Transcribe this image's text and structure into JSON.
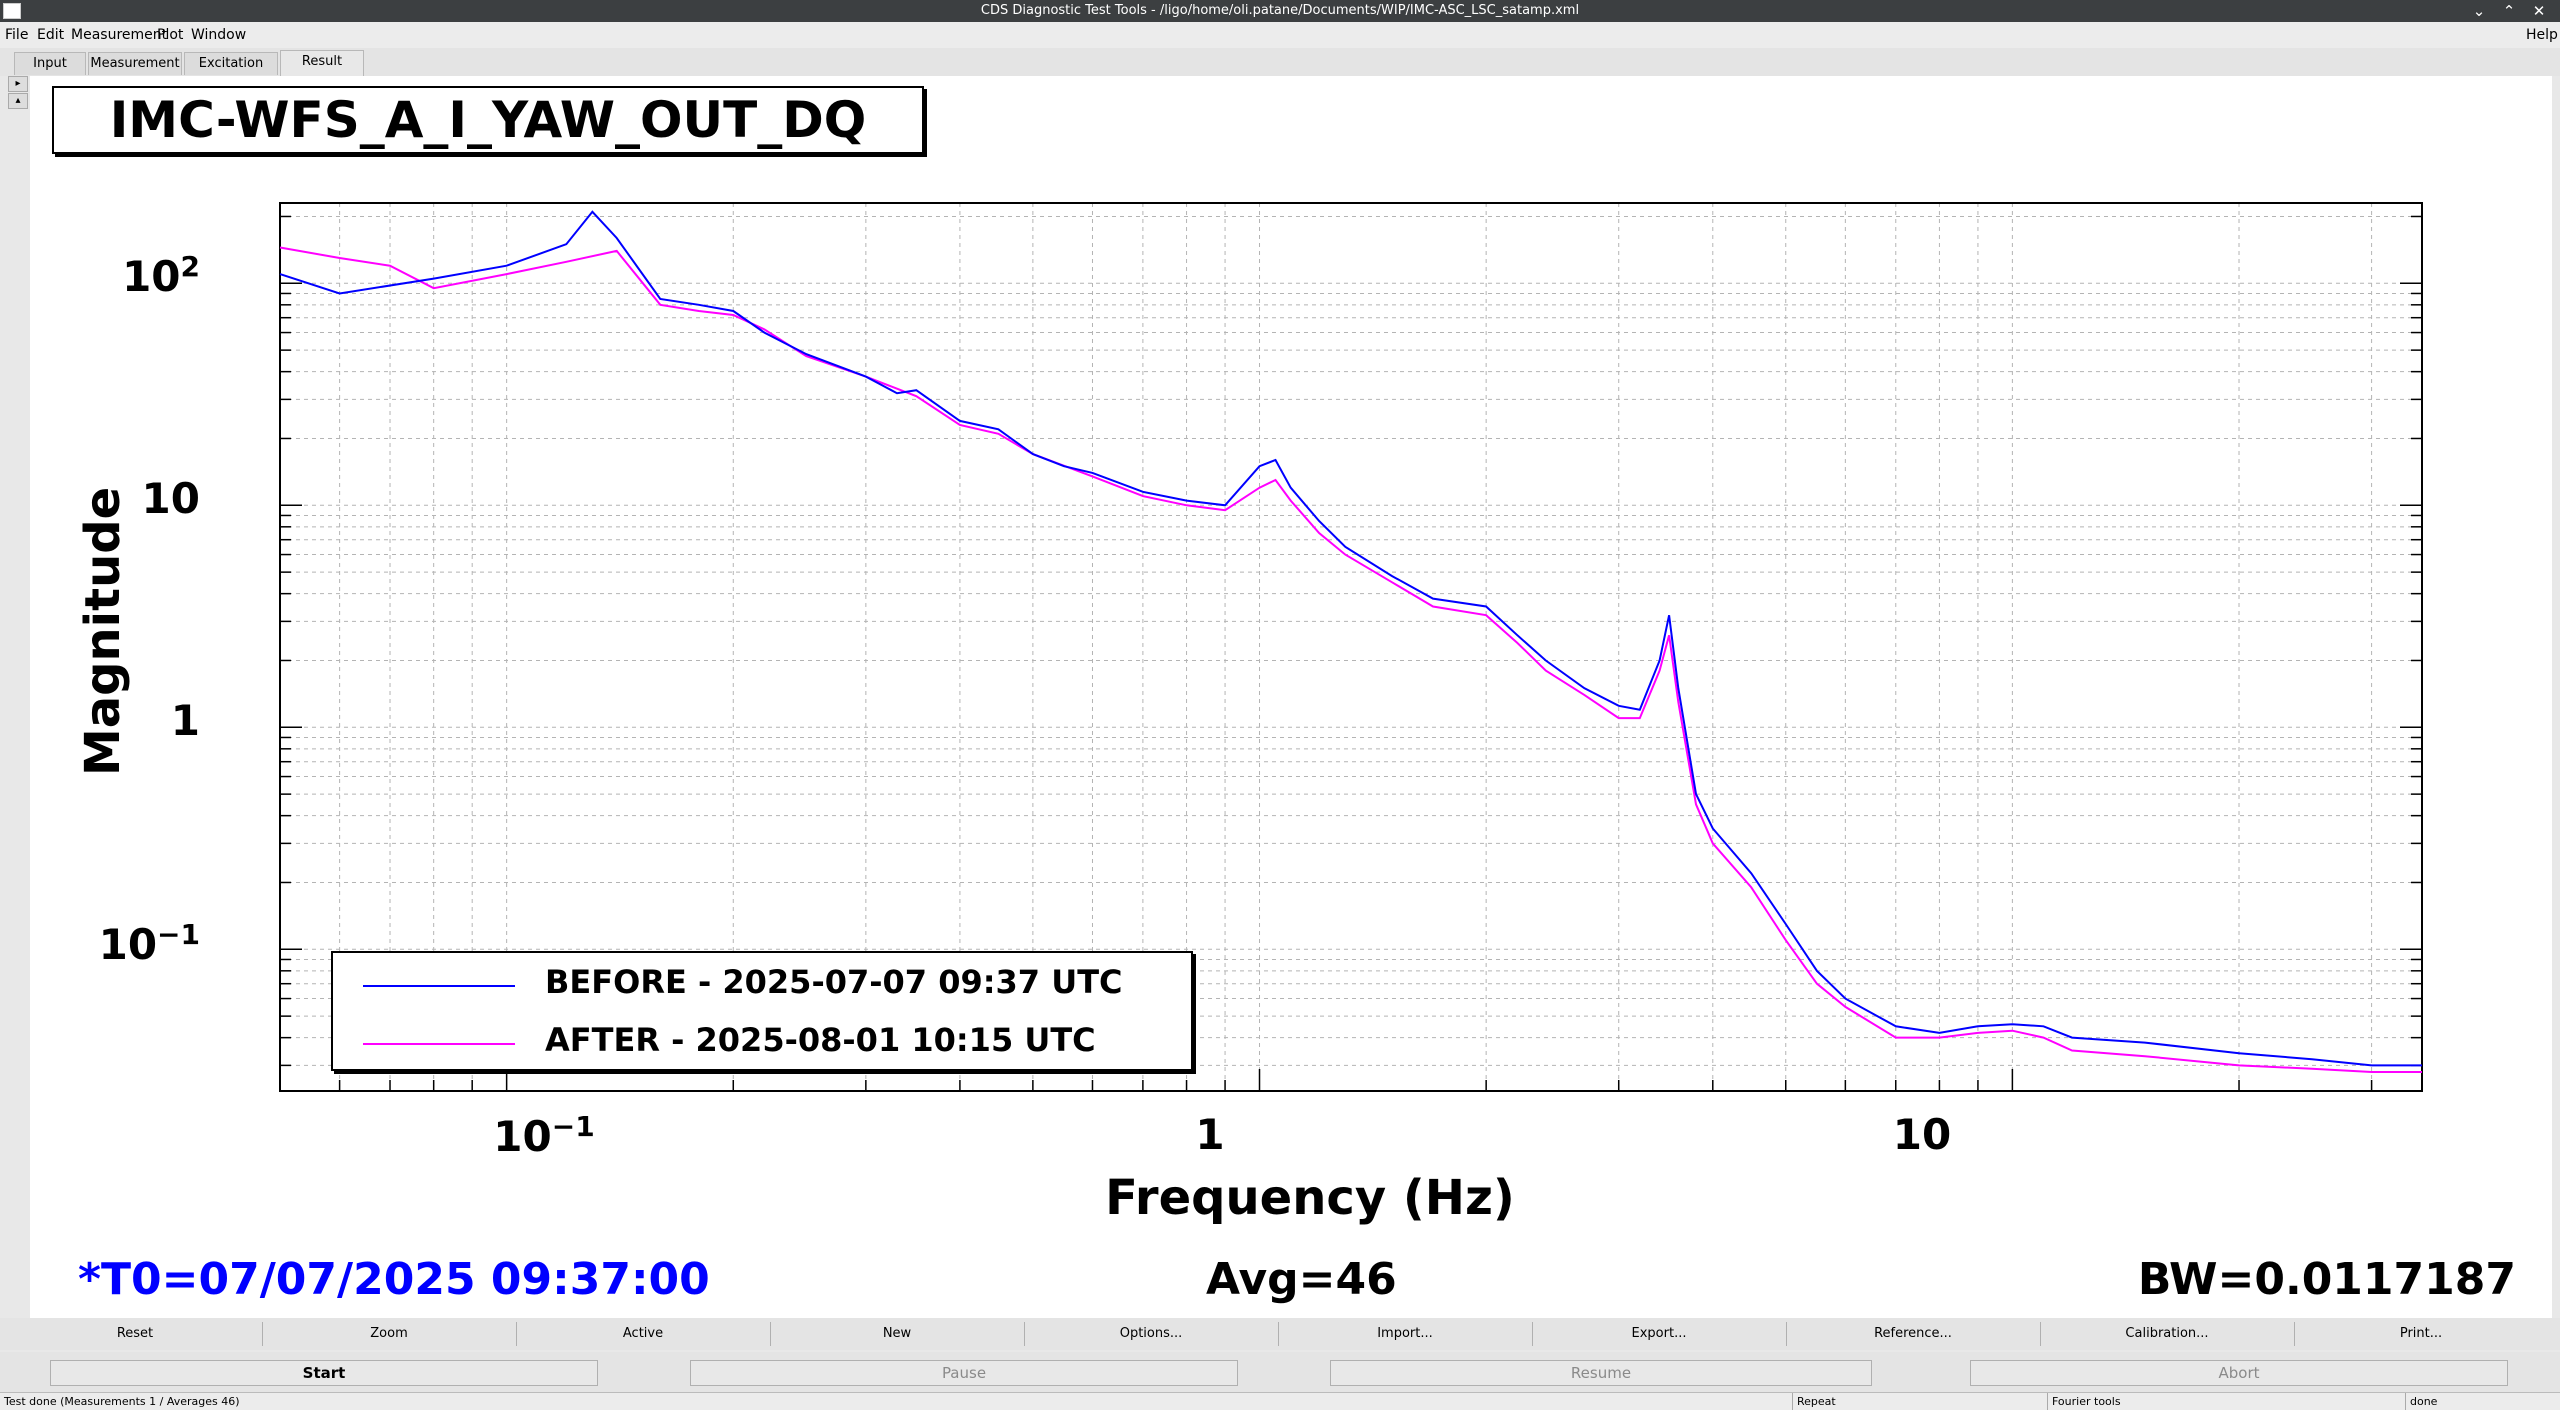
{
  "window": {
    "title": "CDS Diagnostic Test Tools - /ligo/home/oli.patane/Documents/WIP/IMC-ASC_LSC_satamp.xml",
    "minimize_glyph": "⌄",
    "maximize_glyph": "⌃",
    "close_glyph": "✕"
  },
  "menu": {
    "file": "File",
    "edit": "Edit",
    "measurement": "Measurement",
    "plot": "Plot",
    "window": "Window",
    "help": "Help"
  },
  "tabs": {
    "input": "Input",
    "measurement": "Measurement",
    "excitation": "Excitation",
    "result": "Result"
  },
  "side_controls": {
    "expand": "▸",
    "collapse": "▴"
  },
  "plot": {
    "title": "IMC-WFS_A_I_YAW_OUT_DQ",
    "xlabel": "Frequency (Hz)",
    "ylabel": "Magnitude",
    "yticks": {
      "t100_base": "10",
      "t100_exp": "2",
      "t10": "10",
      "t1": "1",
      "t01_base": "10",
      "t01_exp": "−1"
    },
    "xticks": {
      "t01_base": "10",
      "t01_exp": "−1",
      "t1": "1",
      "t10": "10"
    },
    "legend": {
      "before": "BEFORE - 2025-07-07 09:37 UTC",
      "after": "AFTER - 2025-08-01 10:15 UTC"
    },
    "t0": "*T0=07/07/2025 09:37:00",
    "avg": "Avg=46",
    "bw": "BW=0.0117187"
  },
  "chart_data": {
    "type": "line",
    "title": "IMC-WFS_A_I_YAW_OUT_DQ",
    "xlabel": "Frequency (Hz)",
    "ylabel": "Magnitude",
    "xscale": "log",
    "yscale": "log",
    "xlim": [
      0.05,
      35
    ],
    "ylim": [
      0.023,
      230
    ],
    "grid": true,
    "legend_position": "bottom-left",
    "series": [
      {
        "name": "BEFORE - 2025-07-07 09:37 UTC",
        "color": "#0000ff",
        "x": [
          0.05,
          0.06,
          0.08,
          0.1,
          0.12,
          0.13,
          0.14,
          0.16,
          0.18,
          0.2,
          0.22,
          0.25,
          0.3,
          0.33,
          0.35,
          0.4,
          0.45,
          0.5,
          0.55,
          0.6,
          0.7,
          0.8,
          0.9,
          1.0,
          1.05,
          1.1,
          1.2,
          1.3,
          1.5,
          1.7,
          2.0,
          2.2,
          2.4,
          2.7,
          3.0,
          3.2,
          3.4,
          3.5,
          3.6,
          3.8,
          4.0,
          4.5,
          5.0,
          5.5,
          6.0,
          7.0,
          8.0,
          9.0,
          10.0,
          11.0,
          12.0,
          15.0,
          20.0,
          25.0,
          30.0,
          35.0
        ],
        "y": [
          110,
          90,
          105,
          120,
          150,
          210,
          160,
          85,
          80,
          75,
          60,
          48,
          38,
          32,
          33,
          24,
          22,
          17,
          15,
          14,
          11.5,
          10.5,
          10,
          15,
          16,
          12,
          8.5,
          6.5,
          4.8,
          3.8,
          3.5,
          2.6,
          2.0,
          1.5,
          1.25,
          1.2,
          2.0,
          3.2,
          1.5,
          0.5,
          0.35,
          0.22,
          0.13,
          0.08,
          0.06,
          0.045,
          0.042,
          0.045,
          0.046,
          0.045,
          0.04,
          0.038,
          0.034,
          0.032,
          0.03,
          0.03
        ]
      },
      {
        "name": "AFTER - 2025-08-01 10:15 UTC",
        "color": "#ff00ff",
        "x": [
          0.05,
          0.06,
          0.07,
          0.08,
          0.1,
          0.12,
          0.14,
          0.16,
          0.18,
          0.2,
          0.22,
          0.25,
          0.3,
          0.35,
          0.4,
          0.45,
          0.5,
          0.6,
          0.7,
          0.8,
          0.9,
          1.0,
          1.05,
          1.1,
          1.2,
          1.3,
          1.5,
          1.7,
          2.0,
          2.2,
          2.4,
          2.7,
          3.0,
          3.2,
          3.4,
          3.5,
          3.6,
          3.8,
          4.0,
          4.5,
          5.0,
          5.5,
          6.0,
          7.0,
          8.0,
          9.0,
          10.0,
          11.0,
          12.0,
          15.0,
          20.0,
          25.0,
          30.0,
          35.0
        ],
        "y": [
          145,
          130,
          120,
          95,
          110,
          125,
          140,
          80,
          75,
          72,
          62,
          47,
          38,
          31,
          23,
          21,
          17,
          13.5,
          11,
          10,
          9.5,
          12,
          13,
          10.5,
          7.5,
          6.0,
          4.5,
          3.5,
          3.2,
          2.4,
          1.8,
          1.4,
          1.1,
          1.1,
          1.8,
          2.6,
          1.3,
          0.45,
          0.3,
          0.19,
          0.11,
          0.07,
          0.055,
          0.04,
          0.04,
          0.042,
          0.043,
          0.04,
          0.035,
          0.033,
          0.03,
          0.029,
          0.028,
          0.028
        ]
      }
    ]
  },
  "buttons": {
    "reset": "Reset",
    "zoom": "Zoom",
    "active": "Active",
    "new": "New",
    "options": "Options...",
    "import": "Import...",
    "export": "Export...",
    "reference": "Reference...",
    "calibration": "Calibration...",
    "print": "Print..."
  },
  "controls": {
    "start": "Start",
    "pause": "Pause",
    "resume": "Resume",
    "abort": "Abort"
  },
  "status": {
    "message": "Test done (Measurements 1 / Averages 46)",
    "repeat": "Repeat",
    "tool": "Fourier tools",
    "state": "done"
  }
}
